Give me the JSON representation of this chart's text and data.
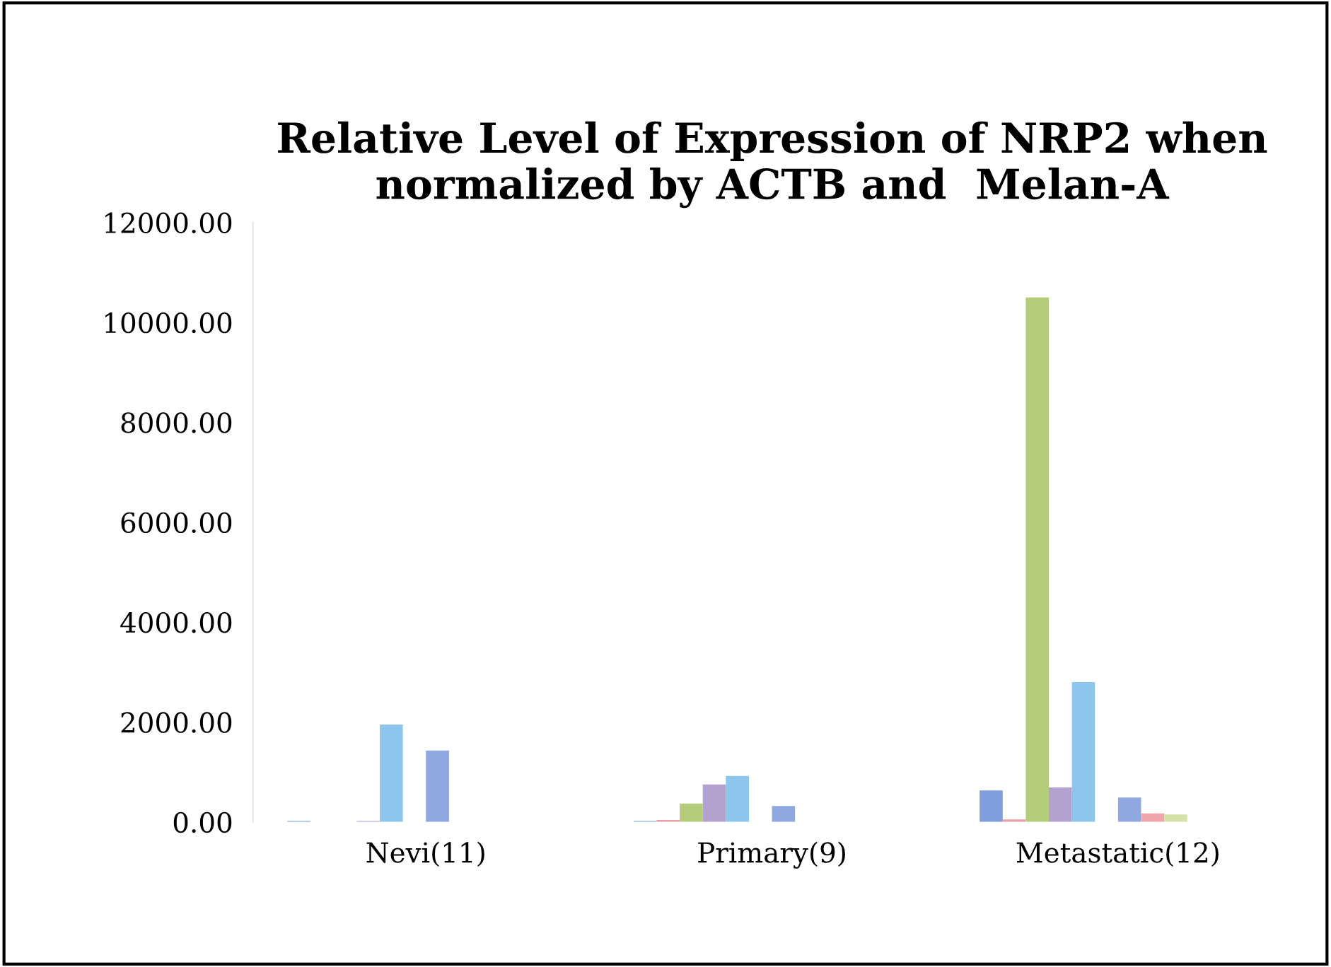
{
  "chart_data": {
    "type": "bar",
    "title": "Relative Level of Expression of NRP2 when\nnormalized by ACTB and  Melan-A",
    "categories": [
      "Nevi(11)",
      "Primary(9)",
      "Metastatic(12)"
    ],
    "series": [
      {
        "color": "#7f9fdc",
        "values": [
          20,
          20,
          630
        ]
      },
      {
        "color": "#e8a0a8",
        "values": [
          0,
          40,
          50
        ]
      },
      {
        "color": "#b5cc7a",
        "values": [
          0,
          370,
          10500
        ]
      },
      {
        "color": "#b3a2cf",
        "values": [
          20,
          750,
          690
        ]
      },
      {
        "color": "#8cc6ec",
        "values": [
          1950,
          920,
          2800
        ]
      },
      {
        "color": "#f5c08a",
        "values": [
          0,
          0,
          0
        ]
      },
      {
        "color": "#8fa8e0",
        "values": [
          1430,
          320,
          490
        ]
      },
      {
        "color": "#eea6aa",
        "values": [
          0,
          0,
          170
        ]
      },
      {
        "color": "#d4e2a8",
        "values": [
          0,
          null,
          150
        ]
      },
      {
        "color": "#c8bde0",
        "values": [
          0,
          0,
          0
        ]
      },
      {
        "color": "#a6d5ee",
        "values": [
          0,
          0,
          0
        ]
      },
      {
        "color": "#f8d0a8",
        "values": [
          null,
          0,
          0
        ]
      }
    ],
    "ylim": [
      0,
      12000
    ],
    "yticks": [
      {
        "value": 0,
        "label": "0.00"
      },
      {
        "value": 2000,
        "label": "2000.00"
      },
      {
        "value": 4000,
        "label": "4000.00"
      },
      {
        "value": 6000,
        "label": "6000.00"
      },
      {
        "value": 8000,
        "label": "8000.00"
      },
      {
        "value": 10000,
        "label": "10000.00"
      },
      {
        "value": 12000,
        "label": "12000.00"
      }
    ],
    "grid": false,
    "legend": false
  }
}
